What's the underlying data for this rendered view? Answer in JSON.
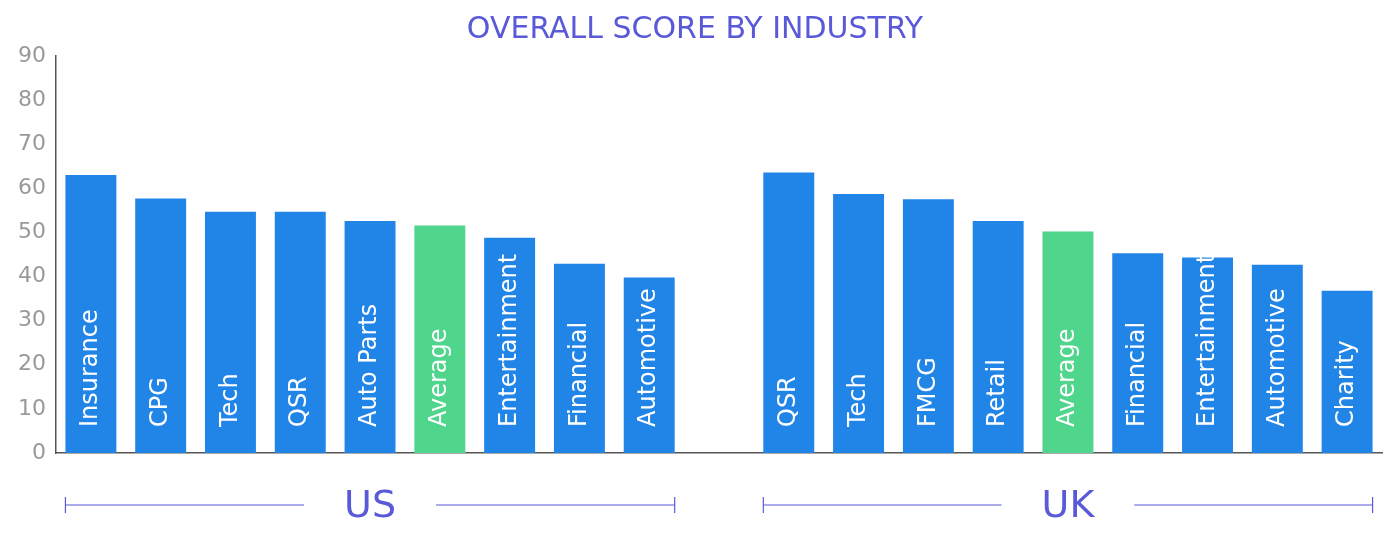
{
  "chart_data": {
    "type": "bar",
    "title": "OVERALL SCORE BY INDUSTRY",
    "categories": [
      "Insurance",
      "CPG",
      "Tech",
      "QSR",
      "Auto Parts",
      "Average",
      "Entertainment",
      "Financial",
      "Automotive",
      null,
      "QSR",
      "Tech",
      "FMCG",
      "Retail",
      "Average",
      "Financial",
      "Entertainment",
      "Automotive",
      "Charity"
    ],
    "values": [
      63,
      57.7,
      54.7,
      54.7,
      52.6,
      51.6,
      48.8,
      42.9,
      39.8,
      null,
      63.6,
      58.7,
      57.5,
      52.6,
      50.2,
      45.3,
      44.3,
      42.7,
      36.8
    ],
    "colors": [
      "#2185e8",
      "#2185e8",
      "#2185e8",
      "#2185e8",
      "#2185e8",
      "#4fd68c",
      "#2185e8",
      "#2185e8",
      "#2185e8",
      "#2185e8",
      "#2185e8",
      "#2185e8",
      "#2185e8",
      "#2185e8",
      "#4fd68c",
      "#2185e8",
      "#2185e8",
      "#2185e8",
      "#2185e8"
    ],
    "ylim": [
      0,
      90
    ],
    "yticks": [
      0,
      10,
      20,
      30,
      40,
      50,
      60,
      70,
      80,
      90
    ],
    "grid": false,
    "annotations": [
      "US",
      "UK"
    ]
  }
}
